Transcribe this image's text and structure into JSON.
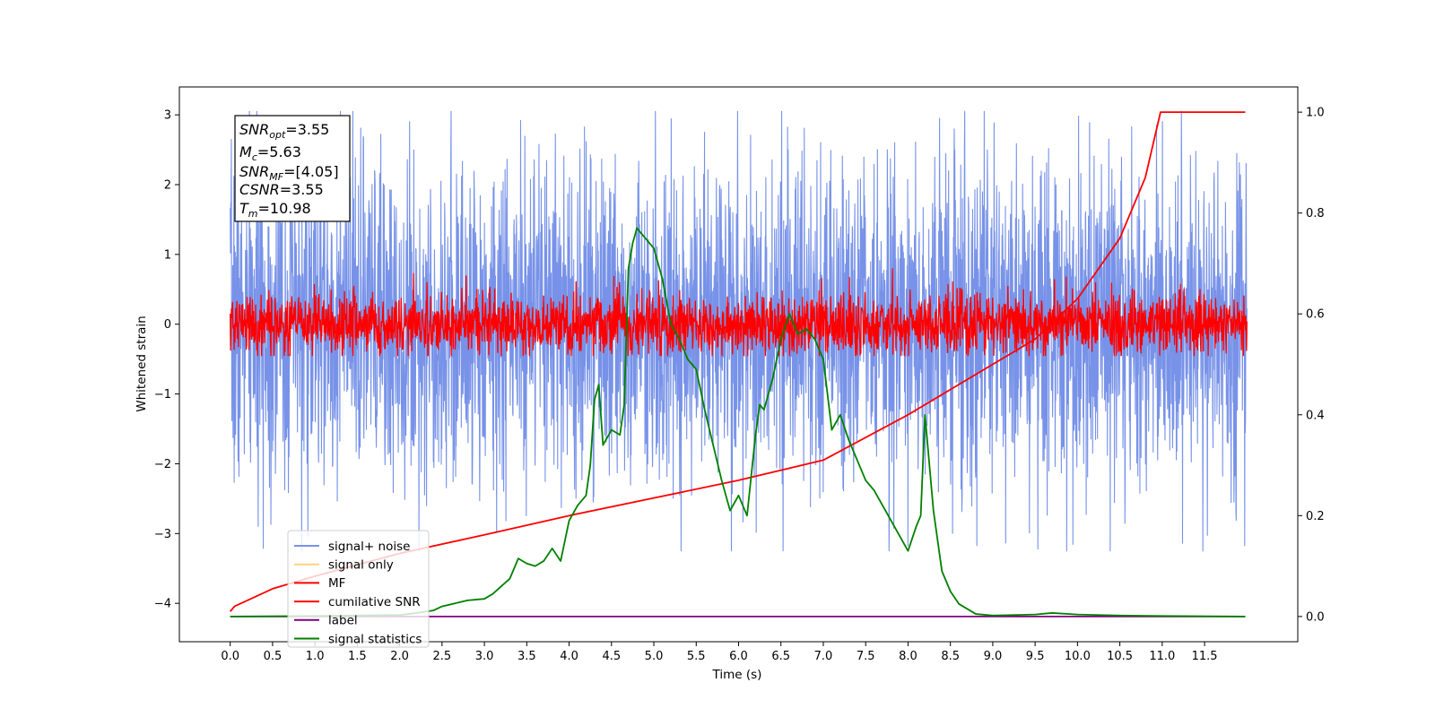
{
  "chart_data": {
    "type": "line",
    "xlabel": "Time (s)",
    "ylabel": "Whitened strain",
    "xlim": [
      -0.6,
      12.6
    ],
    "ylim_left": [
      -4.55,
      3.4
    ],
    "ylim_right": [
      -0.05,
      1.05
    ],
    "x_ticks": [
      "0.0",
      "0.5",
      "1.0",
      "1.5",
      "2.0",
      "2.5",
      "3.0",
      "3.5",
      "4.0",
      "4.5",
      "5.0",
      "5.5",
      "6.0",
      "6.5",
      "7.0",
      "7.5",
      "8.0",
      "8.5",
      "9.0",
      "9.5",
      "10.0",
      "10.5",
      "11.0",
      "11.5"
    ],
    "y_ticks_left": [
      "3",
      "2",
      "1",
      "0",
      "−1",
      "−2",
      "−3",
      "−4"
    ],
    "y_ticks_right": [
      "1.0",
      "0.8",
      "0.6",
      "0.4",
      "0.2",
      "0.0"
    ],
    "grid": false,
    "legend_position": "lower-left",
    "stats_box": {
      "snr_opt": {
        "base": "SNR",
        "sub": "opt",
        "value": "=3.55"
      },
      "mc": {
        "base": "M",
        "sub": "c",
        "value": "=5.63"
      },
      "snr_mf": {
        "base": "SNR",
        "sub": "MF",
        "value": "=[4.05]"
      },
      "csnr": {
        "base": "CSNR",
        "sub": "",
        "value": "=3.55"
      },
      "tm": {
        "base": "T",
        "sub": "m",
        "value": "=10.98"
      }
    },
    "series": [
      {
        "name": "signal+ noise",
        "color": "#7792e8",
        "axis": "left",
        "kind": "noise",
        "t_range": [
          0,
          12
        ],
        "amplitude": "about ±2, peaks to ±3.05"
      },
      {
        "name": "signal only",
        "color": "#ffd27f",
        "axis": "left",
        "kind": "flat",
        "values_note": "not visible"
      },
      {
        "name": "MF",
        "color": "#ff0000",
        "axis": "left",
        "kind": "noise",
        "t_range": [
          0,
          12
        ],
        "amplitude": "about ±0.4, peaks to 0.95"
      },
      {
        "name": "cumilative SNR",
        "color": "#ff0000",
        "axis": "right",
        "x": [
          0,
          0.05,
          0.5,
          1,
          2,
          3,
          4,
          5,
          6,
          7,
          8,
          9,
          9.5,
          10,
          10.5,
          10.8,
          10.98,
          11.5,
          11.98
        ],
        "y": [
          0.01,
          0.02,
          0.055,
          0.08,
          0.125,
          0.162,
          0.2,
          0.235,
          0.27,
          0.31,
          0.4,
          0.5,
          0.55,
          0.63,
          0.75,
          0.87,
          1.0,
          1.0,
          1.0
        ]
      },
      {
        "name": "label",
        "color": "#800080",
        "axis": "right",
        "x": [
          0,
          11.98
        ],
        "y": [
          0.0,
          0.0
        ]
      },
      {
        "name": "signal statistics",
        "color": "#008000",
        "axis": "right",
        "x": [
          0,
          1,
          2,
          2.2,
          2.4,
          2.5,
          2.7,
          2.8,
          3.0,
          3.1,
          3.2,
          3.3,
          3.4,
          3.5,
          3.6,
          3.7,
          3.8,
          3.9,
          4.0,
          4.1,
          4.2,
          4.25,
          4.3,
          4.35,
          4.4,
          4.5,
          4.6,
          4.65,
          4.7,
          4.75,
          4.8,
          4.9,
          5.0,
          5.1,
          5.2,
          5.3,
          5.4,
          5.5,
          5.6,
          5.7,
          5.8,
          5.9,
          6.0,
          6.1,
          6.2,
          6.25,
          6.3,
          6.4,
          6.5,
          6.6,
          6.7,
          6.8,
          6.9,
          7.0,
          7.1,
          7.2,
          7.3,
          7.4,
          7.5,
          7.6,
          7.7,
          7.8,
          7.9,
          8.0,
          8.1,
          8.15,
          8.2,
          8.3,
          8.4,
          8.5,
          8.6,
          8.8,
          9.0,
          9.5,
          9.7,
          10.0,
          10.5,
          11.0,
          11.98
        ],
        "y": [
          0.0,
          0.001,
          0.003,
          0.007,
          0.012,
          0.02,
          0.028,
          0.032,
          0.035,
          0.045,
          0.06,
          0.075,
          0.115,
          0.105,
          0.1,
          0.11,
          0.135,
          0.11,
          0.19,
          0.22,
          0.24,
          0.3,
          0.43,
          0.46,
          0.34,
          0.37,
          0.36,
          0.42,
          0.69,
          0.74,
          0.77,
          0.75,
          0.73,
          0.67,
          0.58,
          0.55,
          0.51,
          0.49,
          0.41,
          0.34,
          0.27,
          0.21,
          0.24,
          0.2,
          0.36,
          0.42,
          0.41,
          0.47,
          0.55,
          0.6,
          0.56,
          0.57,
          0.55,
          0.51,
          0.37,
          0.4,
          0.35,
          0.31,
          0.27,
          0.25,
          0.22,
          0.19,
          0.16,
          0.13,
          0.18,
          0.2,
          0.4,
          0.21,
          0.09,
          0.05,
          0.025,
          0.005,
          0.002,
          0.004,
          0.007,
          0.004,
          0.002,
          0.001,
          0.0
        ]
      }
    ]
  }
}
